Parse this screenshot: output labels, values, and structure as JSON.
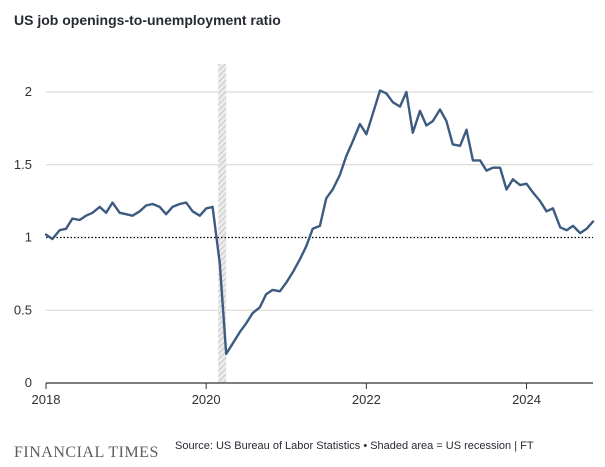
{
  "footer": {
    "brand": "FINANCIAL TIMES",
    "source": "Source: US Bureau of Labor Statistics • Shaded area = US recession | FT"
  },
  "colors": {
    "line": "#3d5a80",
    "grid": "#d6d3cc",
    "axis": "#33302e",
    "reference_line": "#000000",
    "recession": "#c8c8c8"
  },
  "chart_data": {
    "type": "line",
    "title": "US job openings-to-unemployment ratio",
    "xlabel": "",
    "ylabel": "",
    "xlim": [
      2018.0,
      2024.83
    ],
    "ylim": [
      0,
      2
    ],
    "yticks": [
      0,
      0.5,
      1,
      1.5,
      2
    ],
    "ytick_labels": [
      "0",
      "0.5",
      "1",
      "1.5",
      "2"
    ],
    "xticks": [
      2018,
      2020,
      2022,
      2024
    ],
    "xtick_labels": [
      "2018",
      "2020",
      "2022",
      "2024"
    ],
    "grid": "horizontal",
    "reference_line": {
      "y": 1,
      "style": "dotted"
    },
    "shaded_regions": [
      {
        "x0": 2020.15,
        "x1": 2020.25,
        "label": "US recession"
      }
    ],
    "series": [
      {
        "x": [
          2018.0,
          2018.08,
          2018.17,
          2018.25,
          2018.33,
          2018.42,
          2018.5,
          2018.58,
          2018.67,
          2018.75,
          2018.83,
          2018.92,
          2019.0,
          2019.08,
          2019.17,
          2019.25,
          2019.33,
          2019.42,
          2019.5,
          2019.58,
          2019.67,
          2019.75,
          2019.83,
          2019.92,
          2020.0,
          2020.08,
          2020.17,
          2020.25,
          2020.33,
          2020.42,
          2020.5,
          2020.58,
          2020.67,
          2020.75,
          2020.83,
          2020.92,
          2021.0,
          2021.08,
          2021.17,
          2021.25,
          2021.33,
          2021.42,
          2021.5,
          2021.58,
          2021.67,
          2021.75,
          2021.83,
          2021.92,
          2022.0,
          2022.08,
          2022.17,
          2022.25,
          2022.33,
          2022.42,
          2022.5,
          2022.58,
          2022.67,
          2022.75,
          2022.83,
          2022.92,
          2023.0,
          2023.08,
          2023.17,
          2023.25,
          2023.33,
          2023.42,
          2023.5,
          2023.58,
          2023.67,
          2023.75,
          2023.83,
          2023.92,
          2024.0,
          2024.08,
          2024.17,
          2024.25,
          2024.33,
          2024.42,
          2024.5,
          2024.58,
          2024.67,
          2024.75,
          2024.83
        ],
        "values": [
          1.02,
          0.99,
          1.05,
          1.06,
          1.13,
          1.12,
          1.15,
          1.17,
          1.21,
          1.17,
          1.24,
          1.17,
          1.16,
          1.15,
          1.18,
          1.22,
          1.23,
          1.21,
          1.16,
          1.21,
          1.23,
          1.24,
          1.18,
          1.15,
          1.2,
          1.21,
          0.82,
          0.2,
          0.27,
          0.35,
          0.41,
          0.48,
          0.52,
          0.61,
          0.64,
          0.63,
          0.69,
          0.76,
          0.85,
          0.94,
          1.06,
          1.08,
          1.27,
          1.33,
          1.43,
          1.56,
          1.66,
          1.78,
          1.71,
          1.85,
          2.01,
          1.99,
          1.93,
          1.9,
          2.0,
          1.72,
          1.87,
          1.77,
          1.8,
          1.88,
          1.8,
          1.64,
          1.63,
          1.74,
          1.53,
          1.53,
          1.46,
          1.48,
          1.48,
          1.33,
          1.4,
          1.36,
          1.37,
          1.31,
          1.25,
          1.18,
          1.2,
          1.07,
          1.05,
          1.08,
          1.03,
          1.06,
          1.11
        ]
      }
    ]
  }
}
